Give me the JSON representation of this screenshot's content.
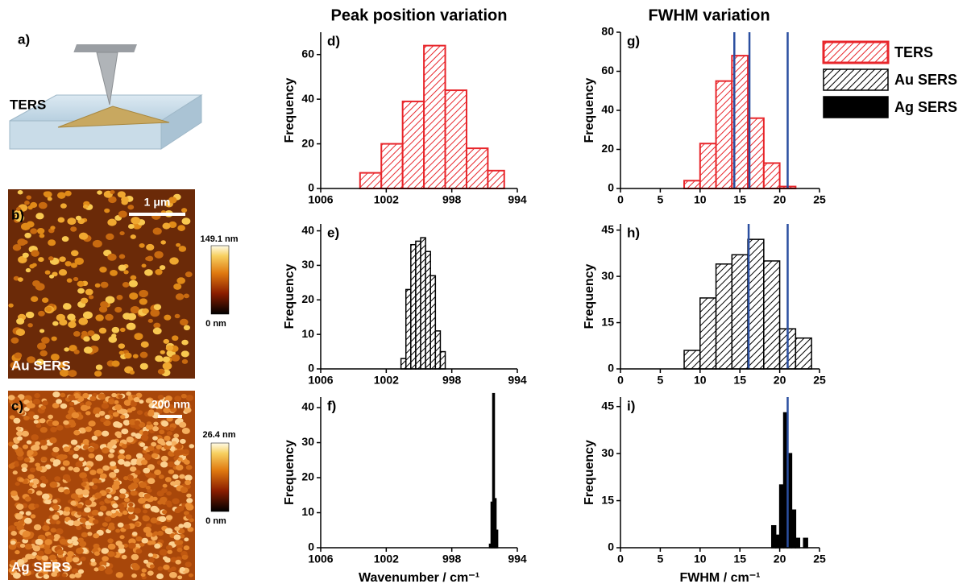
{
  "panels": {
    "a": {
      "label": "a)",
      "text": "TERS"
    },
    "b": {
      "label": "b)",
      "scale": "1 μm",
      "max": "149.1 nm",
      "min": "0 nm",
      "name": "Au SERS"
    },
    "c": {
      "label": "c)",
      "scale": "200 nm",
      "max": "26.4 nm",
      "min": "0 nm",
      "name": "Ag SERS"
    }
  },
  "columns": [
    {
      "title": "Peak position variation"
    },
    {
      "title": "FWHM variation"
    }
  ],
  "legend": [
    {
      "name": "TERS",
      "color": "#e8262b",
      "hatch": true
    },
    {
      "name": "Au SERS",
      "color": "#000000",
      "hatch": true
    },
    {
      "name": "Ag SERS",
      "color": "#000000",
      "hatch": false
    }
  ],
  "chart_data": [
    {
      "type": "histogram",
      "label": "d)",
      "ylabel": "Frequency",
      "color": "#e8262b",
      "hatch": true,
      "bins": [
        1003.6,
        1002.3,
        1001.0,
        999.7,
        998.4,
        997.1,
        995.8,
        994.8
      ],
      "counts": [
        7,
        20,
        39,
        64,
        44,
        18,
        8
      ],
      "xlim": [
        1006,
        994
      ],
      "xticks": [
        1006,
        1002,
        998,
        994
      ],
      "ylim": [
        0,
        70
      ],
      "yticks": [
        0,
        20,
        40,
        60
      ]
    },
    {
      "type": "histogram",
      "label": "e)",
      "ylabel": "Frequency",
      "color": "#000000",
      "hatch": true,
      "bins": [
        1001.1,
        1000.8,
        1000.5,
        1000.2,
        999.9,
        999.6,
        999.3,
        999.0,
        998.7,
        998.4
      ],
      "counts": [
        3,
        23,
        36,
        37,
        38,
        34,
        27,
        11,
        5
      ],
      "xlim": [
        1006,
        994
      ],
      "xticks": [
        1006,
        1002,
        998,
        994
      ],
      "ylim": [
        0,
        42
      ],
      "yticks": [
        0,
        10,
        20,
        30,
        40
      ]
    },
    {
      "type": "histogram",
      "label": "f)",
      "ylabel": "Frequency",
      "xlabel": "Wavenumber / cm⁻¹",
      "color": "#000000",
      "hatch": false,
      "bins": [
        995.7,
        995.6,
        995.5,
        995.4,
        995.3,
        995.2
      ],
      "counts": [
        1,
        13,
        44,
        14,
        5
      ],
      "xlim": [
        1006,
        994
      ],
      "xticks": [
        1006,
        1002,
        998,
        994
      ],
      "ylim": [
        0,
        43
      ],
      "yticks": [
        0,
        10,
        20,
        30,
        40
      ]
    },
    {
      "type": "histogram",
      "label": "g)",
      "ylabel": "Frequency",
      "color": "#e8262b",
      "hatch": true,
      "bins": [
        8,
        10,
        12,
        14,
        16,
        18,
        20,
        22
      ],
      "counts": [
        4,
        23,
        55,
        68,
        36,
        13,
        1
      ],
      "vlines": [
        14.3,
        16.2,
        21.0
      ],
      "vline_color": "#2b4fa0",
      "xlim": [
        0,
        25
      ],
      "xticks": [
        0,
        5,
        10,
        15,
        20,
        25
      ],
      "ylim": [
        0,
        80
      ],
      "yticks": [
        0,
        20,
        40,
        60,
        80
      ]
    },
    {
      "type": "histogram",
      "label": "h)",
      "ylabel": "Frequency",
      "color": "#000000",
      "hatch": true,
      "bins": [
        8,
        10,
        12,
        14,
        16,
        18,
        20,
        22,
        24
      ],
      "counts": [
        6,
        23,
        34,
        37,
        42,
        35,
        13,
        10
      ],
      "vlines": [
        16.1,
        21.0
      ],
      "vline_color": "#2b4fa0",
      "xlim": [
        0,
        25
      ],
      "xticks": [
        0,
        5,
        10,
        15,
        20,
        25
      ],
      "ylim": [
        0,
        47
      ],
      "yticks": [
        0,
        15,
        30,
        45
      ]
    },
    {
      "type": "histogram",
      "label": "i)",
      "ylabel": "Frequency",
      "xlabel": "FWHM / cm⁻¹",
      "color": "#000000",
      "hatch": false,
      "bins": [
        19,
        19.5,
        20,
        20.5,
        21,
        21.5,
        22,
        22.5,
        23,
        23.5
      ],
      "counts": [
        7,
        4,
        20,
        43,
        30,
        12,
        3,
        0,
        3
      ],
      "vlines": [
        21.0
      ],
      "vline_color": "#2b4fa0",
      "xlim": [
        0,
        25
      ],
      "xticks": [
        0,
        5,
        10,
        15,
        20,
        25
      ],
      "ylim": [
        0,
        48
      ],
      "yticks": [
        0,
        15,
        30,
        45
      ]
    }
  ]
}
